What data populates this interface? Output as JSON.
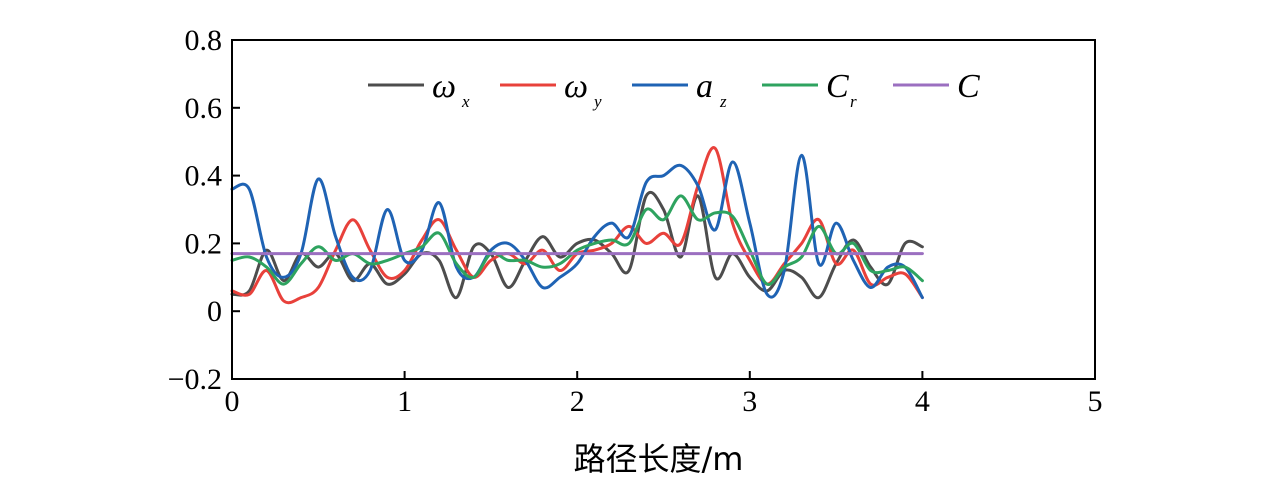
{
  "chart_data": {
    "type": "line",
    "xlabel": "路径长度/m",
    "ylabel": "",
    "xlim": [
      0,
      5
    ],
    "ylim": [
      -0.2,
      0.8
    ],
    "xticks": [
      0,
      1,
      2,
      3,
      4,
      5
    ],
    "xtick_labels": [
      "0",
      "1",
      "2",
      "3",
      "4",
      "5"
    ],
    "yticks": [
      -0.2,
      0,
      0.2,
      0.4,
      0.6,
      0.8
    ],
    "ytick_labels": [
      "−0.2",
      "0",
      "0.2",
      "0.4",
      "0.6",
      "0.8"
    ],
    "grid": false,
    "legend_position": "top",
    "series": [
      {
        "name": "ω",
        "subscript": "x",
        "color": "#4d4d4d",
        "points": [
          [
            0,
            0.05
          ],
          [
            0.1,
            0.06
          ],
          [
            0.2,
            0.18
          ],
          [
            0.3,
            0.09
          ],
          [
            0.4,
            0.17
          ],
          [
            0.5,
            0.13
          ],
          [
            0.6,
            0.17
          ],
          [
            0.7,
            0.09
          ],
          [
            0.8,
            0.14
          ],
          [
            0.9,
            0.08
          ],
          [
            1.0,
            0.11
          ],
          [
            1.1,
            0.17
          ],
          [
            1.2,
            0.15
          ],
          [
            1.3,
            0.04
          ],
          [
            1.4,
            0.19
          ],
          [
            1.5,
            0.17
          ],
          [
            1.6,
            0.07
          ],
          [
            1.7,
            0.15
          ],
          [
            1.8,
            0.22
          ],
          [
            1.9,
            0.16
          ],
          [
            2.0,
            0.2
          ],
          [
            2.1,
            0.21
          ],
          [
            2.2,
            0.17
          ],
          [
            2.3,
            0.12
          ],
          [
            2.4,
            0.34
          ],
          [
            2.5,
            0.3
          ],
          [
            2.6,
            0.16
          ],
          [
            2.7,
            0.34
          ],
          [
            2.8,
            0.1
          ],
          [
            2.9,
            0.17
          ],
          [
            3.0,
            0.1
          ],
          [
            3.1,
            0.06
          ],
          [
            3.2,
            0.12
          ],
          [
            3.3,
            0.1
          ],
          [
            3.4,
            0.04
          ],
          [
            3.5,
            0.14
          ],
          [
            3.6,
            0.21
          ],
          [
            3.7,
            0.13
          ],
          [
            3.8,
            0.08
          ],
          [
            3.9,
            0.2
          ],
          [
            4.0,
            0.19
          ]
        ]
      },
      {
        "name": "ω",
        "subscript": "y",
        "color": "#e8413b",
        "points": [
          [
            0,
            0.06
          ],
          [
            0.1,
            0.05
          ],
          [
            0.2,
            0.12
          ],
          [
            0.3,
            0.03
          ],
          [
            0.4,
            0.04
          ],
          [
            0.5,
            0.07
          ],
          [
            0.6,
            0.18
          ],
          [
            0.7,
            0.27
          ],
          [
            0.8,
            0.18
          ],
          [
            0.9,
            0.1
          ],
          [
            1.0,
            0.12
          ],
          [
            1.1,
            0.21
          ],
          [
            1.2,
            0.27
          ],
          [
            1.3,
            0.18
          ],
          [
            1.4,
            0.1
          ],
          [
            1.5,
            0.15
          ],
          [
            1.6,
            0.17
          ],
          [
            1.7,
            0.14
          ],
          [
            1.8,
            0.18
          ],
          [
            1.9,
            0.12
          ],
          [
            2.0,
            0.17
          ],
          [
            2.1,
            0.18
          ],
          [
            2.2,
            0.2
          ],
          [
            2.3,
            0.25
          ],
          [
            2.4,
            0.2
          ],
          [
            2.5,
            0.23
          ],
          [
            2.6,
            0.2
          ],
          [
            2.7,
            0.37
          ],
          [
            2.8,
            0.48
          ],
          [
            2.9,
            0.26
          ],
          [
            3.0,
            0.15
          ],
          [
            3.1,
            0.08
          ],
          [
            3.2,
            0.14
          ],
          [
            3.3,
            0.2
          ],
          [
            3.4,
            0.27
          ],
          [
            3.5,
            0.14
          ],
          [
            3.6,
            0.18
          ],
          [
            3.7,
            0.08
          ],
          [
            3.8,
            0.1
          ],
          [
            3.9,
            0.11
          ],
          [
            4.0,
            0.04
          ]
        ]
      },
      {
        "name": "a",
        "subscript": "z",
        "color": "#1f63b4",
        "points": [
          [
            0,
            0.36
          ],
          [
            0.1,
            0.36
          ],
          [
            0.2,
            0.16
          ],
          [
            0.3,
            0.1
          ],
          [
            0.4,
            0.17
          ],
          [
            0.5,
            0.39
          ],
          [
            0.6,
            0.22
          ],
          [
            0.7,
            0.1
          ],
          [
            0.8,
            0.12
          ],
          [
            0.9,
            0.3
          ],
          [
            1.0,
            0.15
          ],
          [
            1.1,
            0.18
          ],
          [
            1.2,
            0.32
          ],
          [
            1.3,
            0.13
          ],
          [
            1.4,
            0.1
          ],
          [
            1.5,
            0.18
          ],
          [
            1.6,
            0.2
          ],
          [
            1.7,
            0.15
          ],
          [
            1.8,
            0.07
          ],
          [
            1.9,
            0.1
          ],
          [
            2.0,
            0.14
          ],
          [
            2.1,
            0.22
          ],
          [
            2.2,
            0.26
          ],
          [
            2.3,
            0.22
          ],
          [
            2.4,
            0.38
          ],
          [
            2.5,
            0.4
          ],
          [
            2.6,
            0.43
          ],
          [
            2.7,
            0.37
          ],
          [
            2.8,
            0.24
          ],
          [
            2.9,
            0.44
          ],
          [
            3.0,
            0.26
          ],
          [
            3.1,
            0.05
          ],
          [
            3.2,
            0.12
          ],
          [
            3.3,
            0.46
          ],
          [
            3.4,
            0.14
          ],
          [
            3.5,
            0.26
          ],
          [
            3.6,
            0.15
          ],
          [
            3.7,
            0.07
          ],
          [
            3.8,
            0.13
          ],
          [
            3.9,
            0.13
          ],
          [
            4.0,
            0.04
          ]
        ]
      },
      {
        "name": "C",
        "subscript": "r",
        "color": "#2ea35f",
        "points": [
          [
            0,
            0.15
          ],
          [
            0.1,
            0.16
          ],
          [
            0.2,
            0.13
          ],
          [
            0.3,
            0.08
          ],
          [
            0.4,
            0.14
          ],
          [
            0.5,
            0.19
          ],
          [
            0.6,
            0.15
          ],
          [
            0.7,
            0.17
          ],
          [
            0.8,
            0.14
          ],
          [
            0.9,
            0.15
          ],
          [
            1.0,
            0.17
          ],
          [
            1.1,
            0.19
          ],
          [
            1.2,
            0.23
          ],
          [
            1.3,
            0.14
          ],
          [
            1.4,
            0.1
          ],
          [
            1.5,
            0.17
          ],
          [
            1.6,
            0.15
          ],
          [
            1.7,
            0.15
          ],
          [
            1.8,
            0.13
          ],
          [
            1.9,
            0.14
          ],
          [
            2.0,
            0.18
          ],
          [
            2.1,
            0.2
          ],
          [
            2.2,
            0.21
          ],
          [
            2.3,
            0.2
          ],
          [
            2.4,
            0.3
          ],
          [
            2.5,
            0.27
          ],
          [
            2.6,
            0.34
          ],
          [
            2.7,
            0.27
          ],
          [
            2.8,
            0.29
          ],
          [
            2.9,
            0.28
          ],
          [
            3.0,
            0.18
          ],
          [
            3.1,
            0.08
          ],
          [
            3.2,
            0.13
          ],
          [
            3.3,
            0.16
          ],
          [
            3.4,
            0.25
          ],
          [
            3.5,
            0.17
          ],
          [
            3.6,
            0.2
          ],
          [
            3.7,
            0.12
          ],
          [
            3.8,
            0.12
          ],
          [
            3.9,
            0.13
          ],
          [
            4.0,
            0.09
          ]
        ]
      },
      {
        "name": "C",
        "subscript": "",
        "color": "#9b6fc0",
        "points": [
          [
            0,
            0.17
          ],
          [
            4.0,
            0.17
          ]
        ]
      }
    ]
  }
}
